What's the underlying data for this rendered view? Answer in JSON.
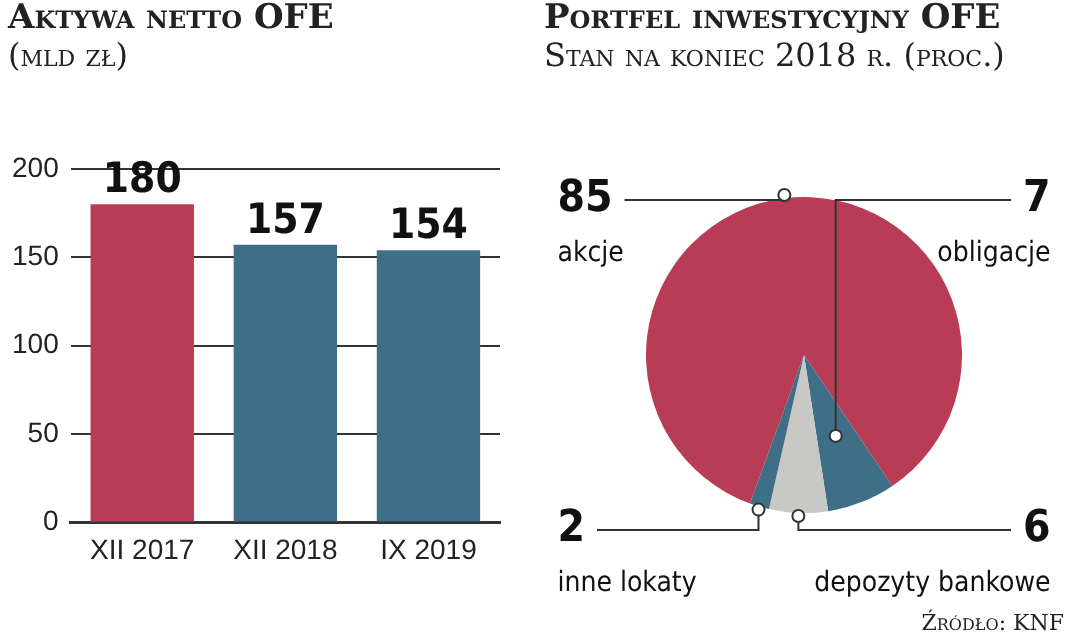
{
  "chart_data": [
    {
      "type": "bar",
      "title": "Aktywa netto OFE",
      "subtitle": "(mld zł)",
      "categories": [
        "XII 2017",
        "XII 2018",
        "IX 2019"
      ],
      "values": [
        180,
        157,
        154
      ],
      "colors": [
        "#b83c55",
        "#3f6f87",
        "#3f6f87"
      ],
      "ylim": [
        0,
        200
      ],
      "yticks": [
        0,
        50,
        100,
        150,
        200
      ],
      "grid": "y",
      "data_labels": true
    },
    {
      "type": "pie",
      "title": "Portfel inwestycyjny OFE",
      "subtitle": "Stan na koniec 2018 r. (proc.)",
      "categories": [
        "akcje",
        "obligacje",
        "depozyty bankowe",
        "inne lokaty"
      ],
      "values": [
        85,
        7,
        6,
        2
      ],
      "colors": [
        "#b83c55",
        "#3f6f87",
        "#c8c8c4",
        "#3f6f87"
      ],
      "data_labels": true,
      "annotations": [
        "Źródło: KNF"
      ]
    }
  ]
}
